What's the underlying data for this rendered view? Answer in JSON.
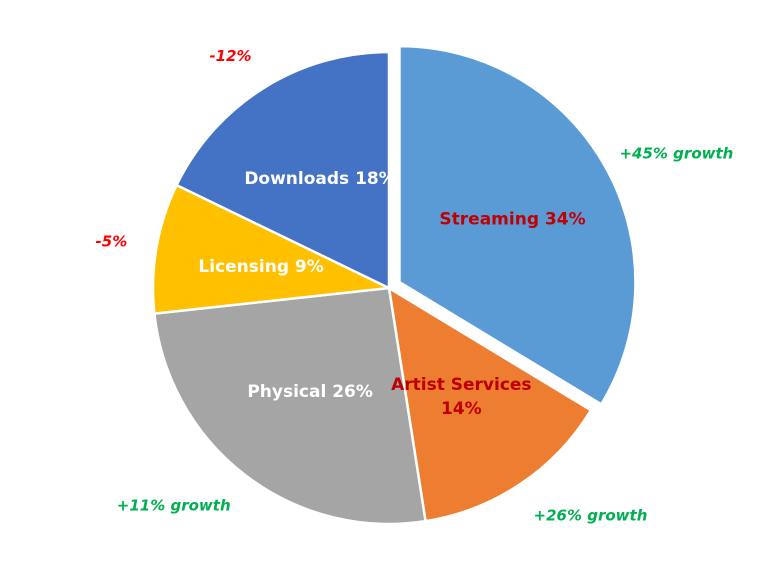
{
  "chart_data": {
    "type": "pie",
    "start_angle_deg": 0,
    "direction": "clockwise",
    "exploded_slice": "Streaming",
    "slices": [
      {
        "name": "Streaming",
        "value": 34,
        "label_lines": [
          "Streaming 34%"
        ],
        "growth": "+45% growth",
        "color": "#5B9BD5",
        "label_color": "#C00000",
        "growth_color": "#00B050"
      },
      {
        "name": "Artist Services",
        "value": 14,
        "label_lines": [
          "Artist Services",
          "14%"
        ],
        "growth": "+26% growth",
        "color": "#ED7D31",
        "label_color": "#C00000",
        "growth_color": "#00B050"
      },
      {
        "name": "Physical",
        "value": 26,
        "label_lines": [
          "Physical 26%"
        ],
        "growth": "+11% growth",
        "color": "#A5A5A5",
        "label_color": "#FFFFFF",
        "growth_color": "#00B050"
      },
      {
        "name": "Licensing",
        "value": 9,
        "label_lines": [
          "Licensing 9%"
        ],
        "growth": "-5%",
        "color": "#FFC000",
        "label_color": "#FFFFFF",
        "growth_color": "#FF0000"
      },
      {
        "name": "Downloads",
        "value": 18,
        "label_lines": [
          "Downloads 18%"
        ],
        "growth": "-12%",
        "color": "#4472C4",
        "label_color": "#FFFFFF",
        "growth_color": "#FF0000"
      }
    ]
  }
}
